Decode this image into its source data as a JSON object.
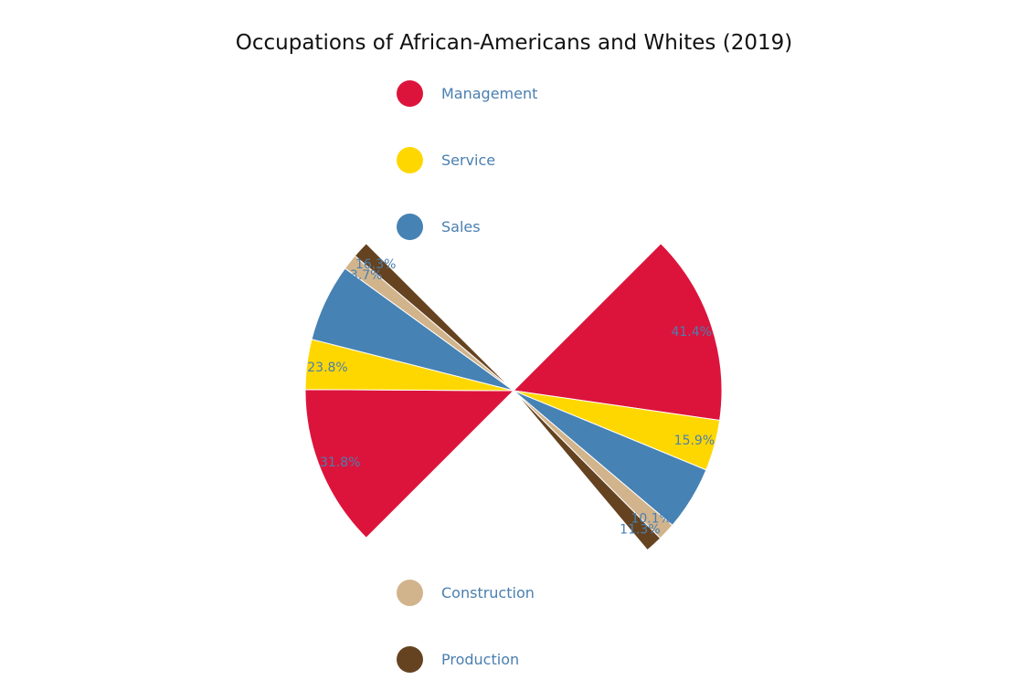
{
  "chart_data": {
    "type": "pie",
    "title": "Occupations of African-Americans and Whites (2019)",
    "categories": [
      "Management",
      "Service",
      "Sales",
      "Construction",
      "Production"
    ],
    "colors": [
      "#dc143c",
      "#ffd700",
      "#4682b4",
      "#d2b48c",
      "#654321"
    ],
    "label_color": "#4a7fb0",
    "legend_placement": "left",
    "series": [
      {
        "values": [
          31.8,
          23.8,
          21.4,
          3.7,
          16.3
        ],
        "labels": [
          "31.8%",
          "23.8%",
          "",
          "3.7%",
          "16.3%"
        ],
        "sectors": [
          {
            "start": 225.0,
            "end": 270.3
          },
          {
            "start": 270.3,
            "end": 284.3
          },
          {
            "start": 284.3,
            "end": 306.0
          },
          {
            "start": 306.0,
            "end": 310.4
          },
          {
            "start": 310.4,
            "end": 315.0
          }
        ]
      },
      {
        "values": [
          41.4,
          15.9,
          21.3,
          10.1,
          11.3
        ],
        "labels": [
          "41.4%",
          "15.9%",
          "",
          "10.1%",
          "11.3%"
        ],
        "sectors": [
          {
            "start": 45.0,
            "end": 98.2
          },
          {
            "start": 98.2,
            "end": 112.4
          },
          {
            "start": 112.4,
            "end": 130.3
          },
          {
            "start": 130.3,
            "end": 135.2
          },
          {
            "start": 135.2,
            "end": 140.0
          }
        ]
      }
    ]
  }
}
